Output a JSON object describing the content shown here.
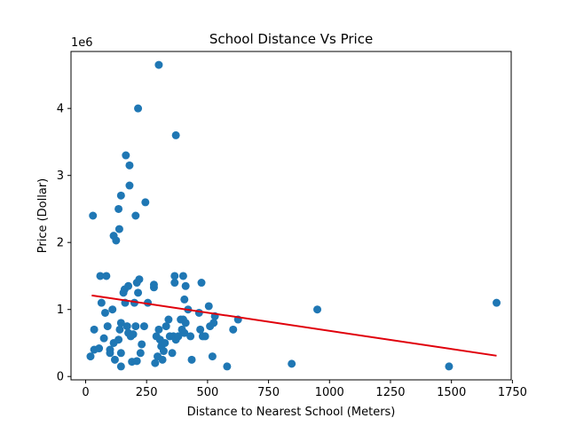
{
  "chart_data": {
    "type": "scatter",
    "title": "School Distance Vs Price",
    "xlabel": "Distance to Nearest School (Meters)",
    "ylabel": "Price (Dollar)",
    "y_offset_label": "1e6",
    "xlim": [
      -60,
      1745
    ],
    "ylim": [
      -0.05,
      4.85
    ],
    "xticks": [
      0,
      250,
      500,
      750,
      1000,
      1250,
      1500,
      1750
    ],
    "xtick_labels": [
      "0",
      "250",
      "500",
      "750",
      "1000",
      "1250",
      "1500",
      "1750"
    ],
    "yticks": [
      0,
      1,
      2,
      3,
      4
    ],
    "ytick_labels": [
      "0",
      "1",
      "2",
      "3",
      "4"
    ],
    "grid": false,
    "point_color": "#1f77b4",
    "line_color": "#e0000b",
    "trendline": {
      "x": [
        25,
        1685
      ],
      "y": [
        1.21,
        0.31
      ]
    },
    "points": [
      [
        30,
        2.4
      ],
      [
        20,
        0.3
      ],
      [
        35,
        0.7
      ],
      [
        35,
        0.4
      ],
      [
        55,
        0.42
      ],
      [
        60,
        1.5
      ],
      [
        65,
        1.1
      ],
      [
        75,
        0.57
      ],
      [
        80,
        0.95
      ],
      [
        85,
        1.5
      ],
      [
        90,
        0.75
      ],
      [
        100,
        0.4
      ],
      [
        100,
        0.35
      ],
      [
        110,
        1.0
      ],
      [
        115,
        0.5
      ],
      [
        115,
        2.1
      ],
      [
        120,
        0.25
      ],
      [
        125,
        2.03
      ],
      [
        135,
        0.55
      ],
      [
        135,
        2.5
      ],
      [
        138,
        2.2
      ],
      [
        140,
        0.7
      ],
      [
        145,
        0.8
      ],
      [
        145,
        2.7
      ],
      [
        145,
        0.35
      ],
      [
        145,
        0.15
      ],
      [
        155,
        1.25
      ],
      [
        160,
        1.3
      ],
      [
        162,
        1.1
      ],
      [
        165,
        3.3
      ],
      [
        170,
        0.75
      ],
      [
        175,
        1.35
      ],
      [
        175,
        0.65
      ],
      [
        180,
        2.85
      ],
      [
        180,
        3.15
      ],
      [
        185,
        0.6
      ],
      [
        190,
        0.22
      ],
      [
        195,
        0.63
      ],
      [
        200,
        1.1
      ],
      [
        205,
        0.75
      ],
      [
        205,
        2.4
      ],
      [
        210,
        0.23
      ],
      [
        210,
        1.4
      ],
      [
        215,
        4.0
      ],
      [
        215,
        1.25
      ],
      [
        220,
        1.45
      ],
      [
        225,
        0.35
      ],
      [
        230,
        0.48
      ],
      [
        240,
        0.75
      ],
      [
        245,
        2.6
      ],
      [
        255,
        1.1
      ],
      [
        280,
        1.33
      ],
      [
        280,
        1.37
      ],
      [
        285,
        0.2
      ],
      [
        290,
        0.6
      ],
      [
        295,
        0.3
      ],
      [
        300,
        4.65
      ],
      [
        300,
        0.7
      ],
      [
        305,
        0.55
      ],
      [
        310,
        0.45
      ],
      [
        315,
        0.25
      ],
      [
        320,
        0.38
      ],
      [
        325,
        0.5
      ],
      [
        330,
        0.75
      ],
      [
        340,
        0.85
      ],
      [
        345,
        0.6
      ],
      [
        355,
        0.35
      ],
      [
        360,
        0.6
      ],
      [
        365,
        1.5
      ],
      [
        365,
        1.4
      ],
      [
        370,
        3.6
      ],
      [
        370,
        0.55
      ],
      [
        380,
        0.6
      ],
      [
        390,
        0.85
      ],
      [
        395,
        0.7
      ],
      [
        400,
        1.5
      ],
      [
        400,
        0.85
      ],
      [
        405,
        1.15
      ],
      [
        405,
        0.65
      ],
      [
        410,
        0.8
      ],
      [
        410,
        1.35
      ],
      [
        420,
        1.0
      ],
      [
        430,
        0.6
      ],
      [
        435,
        0.25
      ],
      [
        465,
        0.95
      ],
      [
        470,
        0.7
      ],
      [
        475,
        1.4
      ],
      [
        480,
        0.6
      ],
      [
        490,
        0.6
      ],
      [
        505,
        1.05
      ],
      [
        510,
        0.75
      ],
      [
        520,
        0.3
      ],
      [
        525,
        0.8
      ],
      [
        530,
        0.9
      ],
      [
        580,
        0.15
      ],
      [
        605,
        0.7
      ],
      [
        625,
        0.85
      ],
      [
        845,
        0.19
      ],
      [
        950,
        1.0
      ],
      [
        1490,
        0.15
      ],
      [
        1685,
        1.1
      ]
    ]
  }
}
